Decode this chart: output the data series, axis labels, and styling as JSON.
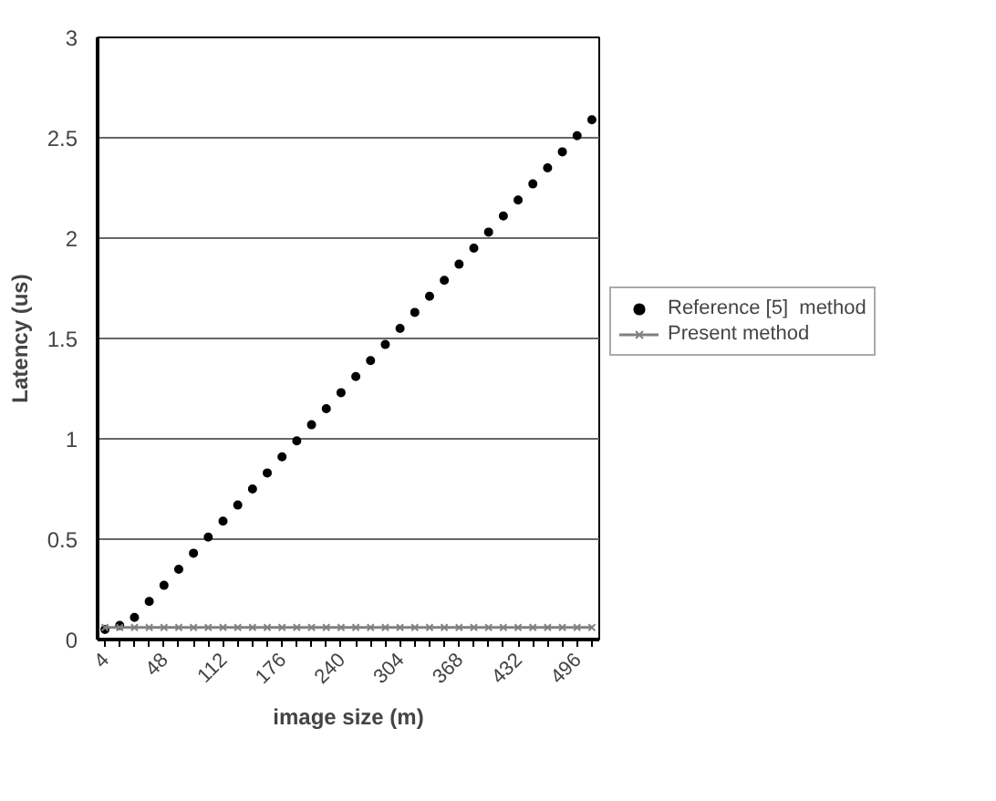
{
  "chart_data": {
    "type": "line",
    "xlabel": "image size (m)",
    "ylabel": "Latency (us)",
    "categories": [
      "4",
      null,
      null,
      null,
      "48",
      null,
      null,
      null,
      "112",
      null,
      null,
      null,
      "176",
      null,
      null,
      null,
      "240",
      null,
      null,
      null,
      "304",
      null,
      null,
      null,
      "368",
      null,
      null,
      null,
      "432",
      null,
      null,
      null,
      "496",
      null
    ],
    "series": [
      {
        "name": "Reference [5]  method",
        "type": "scatter",
        "marker": "circle",
        "color": "#000000",
        "values": [
          0.05,
          0.07,
          0.11,
          0.19,
          0.27,
          0.35,
          0.43,
          0.51,
          0.59,
          0.67,
          0.75,
          0.83,
          0.91,
          0.99,
          1.07,
          1.15,
          1.23,
          1.31,
          1.39,
          1.47,
          1.55,
          1.63,
          1.71,
          1.79,
          1.87,
          1.95,
          2.03,
          2.11,
          2.19,
          2.27,
          2.35,
          2.43,
          2.51,
          2.59
        ]
      },
      {
        "name": "Present method",
        "marker": "cross",
        "color": "#808080",
        "values": [
          0.06,
          0.06,
          0.06,
          0.06,
          0.06,
          0.06,
          0.06,
          0.06,
          0.06,
          0.06,
          0.06,
          0.06,
          0.06,
          0.06,
          0.06,
          0.06,
          0.06,
          0.06,
          0.06,
          0.06,
          0.06,
          0.06,
          0.06,
          0.06,
          0.06,
          0.06,
          0.06,
          0.06,
          0.06,
          0.06,
          0.06,
          0.06,
          0.06,
          0.06
        ]
      }
    ],
    "ylim": [
      0,
      3
    ],
    "yticks": [
      0,
      0.5,
      1,
      1.5,
      2,
      2.5,
      3
    ],
    "grid": "y",
    "legend": "right"
  }
}
